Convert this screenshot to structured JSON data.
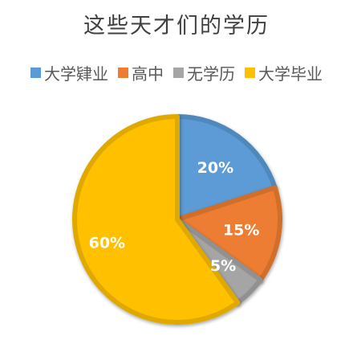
{
  "chart_data": {
    "type": "pie",
    "title": "这些天才们的学历",
    "categories": [
      "大学肄业",
      "高中",
      "无学历",
      "大学毕业"
    ],
    "values": [
      20,
      15,
      5,
      60
    ],
    "data_labels": [
      "20%",
      "15%",
      "5%",
      "60%"
    ],
    "colors": [
      "#5B9BD5",
      "#ED7D31",
      "#A5A5A5",
      "#FFC000"
    ],
    "legend_position": "top",
    "start_angle": "12 o'clock",
    "direction": "clockwise"
  }
}
